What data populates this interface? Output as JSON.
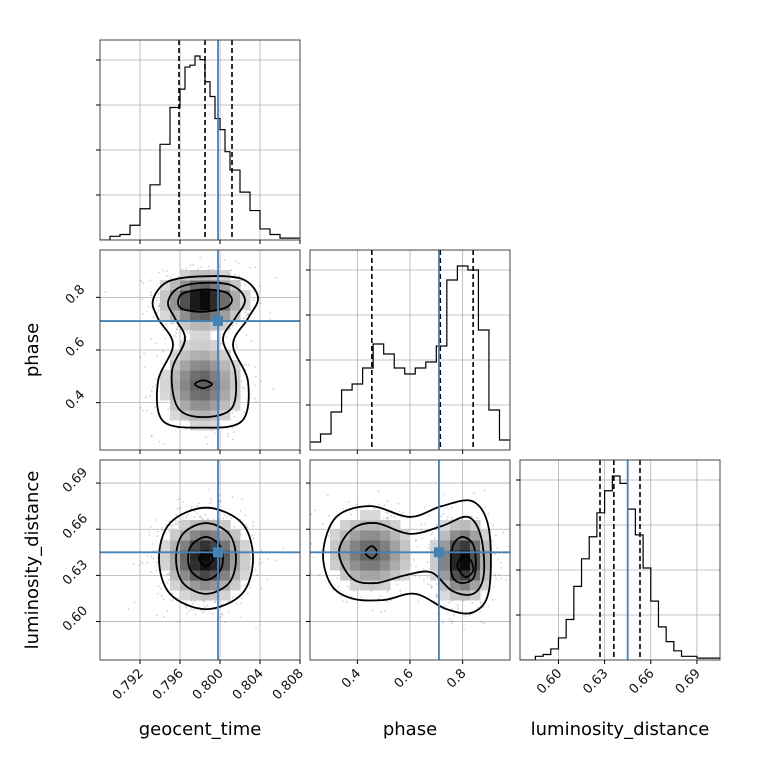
{
  "chart_data": {
    "type": "corner",
    "parameters": [
      "geocent_time",
      "phase",
      "luminosity_distance"
    ],
    "axis_labels": [
      "geocent_time",
      "phase",
      "luminosity_distance"
    ],
    "ranges": [
      [
        0.788,
        0.808
      ],
      [
        0.22,
        0.98
      ],
      [
        0.575,
        0.705
      ]
    ],
    "ticks": [
      [
        "0.792",
        "0.796",
        "0.800",
        "0.804",
        "0.808"
      ],
      [
        "0.4",
        "0.6",
        "0.8"
      ],
      [
        "0.60",
        "0.63",
        "0.66",
        "0.69"
      ]
    ],
    "tick_values": [
      [
        0.792,
        0.796,
        0.8,
        0.804,
        0.808
      ],
      [
        0.4,
        0.6,
        0.8
      ],
      [
        0.6,
        0.63,
        0.66,
        0.69
      ]
    ],
    "truths": [
      0.7998,
      0.71,
      0.645
    ],
    "truth_color": "#4682b4",
    "line_color": "#000000",
    "grid": true,
    "histograms": [
      {
        "param": "geocent_time",
        "bin_edges": [
          0.788,
          0.789,
          0.79,
          0.791,
          0.792,
          0.793,
          0.794,
          0.795,
          0.796,
          0.7965,
          0.797,
          0.7975,
          0.798,
          0.7985,
          0.799,
          0.7995,
          0.8,
          0.8005,
          0.801,
          0.802,
          0.803,
          0.804,
          0.805,
          0.806,
          0.808
        ],
        "counts": [
          0,
          2,
          3,
          8,
          17,
          30,
          52,
          72,
          82,
          94,
          95,
          100,
          98,
          86,
          78,
          66,
          60,
          48,
          38,
          26,
          16,
          6,
          3,
          1
        ],
        "quantiles": [
          0.7959,
          0.7985,
          0.8012
        ]
      },
      {
        "param": "phase",
        "bin_edges": [
          0.22,
          0.26,
          0.3,
          0.34,
          0.38,
          0.42,
          0.46,
          0.5,
          0.54,
          0.58,
          0.62,
          0.66,
          0.7,
          0.74,
          0.78,
          0.82,
          0.86,
          0.9,
          0.94,
          0.98
        ],
        "counts": [
          4,
          8,
          19,
          30,
          33,
          41,
          53,
          48,
          41,
          38,
          41,
          44,
          52,
          85,
          92,
          90,
          60,
          20,
          5
        ],
        "quantiles": [
          0.455,
          0.715,
          0.84
        ]
      },
      {
        "param": "luminosity_distance",
        "bin_edges": [
          0.575,
          0.585,
          0.59,
          0.595,
          0.6,
          0.605,
          0.61,
          0.615,
          0.62,
          0.625,
          0.63,
          0.635,
          0.64,
          0.645,
          0.65,
          0.655,
          0.66,
          0.665,
          0.67,
          0.675,
          0.68,
          0.69,
          0.705
        ],
        "counts": [
          0,
          2,
          3,
          6,
          12,
          22,
          40,
          55,
          67,
          80,
          92,
          100,
          96,
          82,
          68,
          50,
          32,
          18,
          10,
          5,
          2,
          1
        ],
        "quantiles": [
          0.627,
          0.636,
          0.653
        ]
      }
    ],
    "density_panels": [
      {
        "x": "geocent_time",
        "y": "phase",
        "components": [
          {
            "mx": 0.7983,
            "my": 0.79,
            "sx": 0.0021,
            "sy": 0.055,
            "w": 0.62
          },
          {
            "mx": 0.7982,
            "my": 0.47,
            "sx": 0.0021,
            "sy": 0.09,
            "w": 0.38
          }
        ],
        "contours": [
          {
            "name": "contour-inner",
            "points": [
              [
                0.7958,
                0.78
              ],
              [
                0.7963,
                0.815
              ],
              [
                0.7983,
                0.83
              ],
              [
                0.8005,
                0.82
              ],
              [
                0.8012,
                0.79
              ],
              [
                0.8005,
                0.76
              ],
              [
                0.7983,
                0.745
              ],
              [
                0.7963,
                0.755
              ]
            ]
          },
          {
            "name": "contour-middle",
            "points": [
              [
                0.7948,
                0.78
              ],
              [
                0.7958,
                0.835
              ],
              [
                0.7983,
                0.855
              ],
              [
                0.8012,
                0.845
              ],
              [
                0.8025,
                0.79
              ],
              [
                0.8015,
                0.72
              ],
              [
                0.8003,
                0.64
              ],
              [
                0.8015,
                0.52
              ],
              [
                0.8012,
                0.38
              ],
              [
                0.7983,
                0.345
              ],
              [
                0.7958,
                0.38
              ],
              [
                0.7952,
                0.52
              ],
              [
                0.7965,
                0.64
              ],
              [
                0.7955,
                0.72
              ]
            ]
          },
          {
            "name": "contour-outer",
            "points": [
              [
                0.7933,
                0.79
              ],
              [
                0.7948,
                0.86
              ],
              [
                0.7983,
                0.88
              ],
              [
                0.8022,
                0.87
              ],
              [
                0.8038,
                0.8
              ],
              [
                0.8028,
                0.72
              ],
              [
                0.8013,
                0.62
              ],
              [
                0.8028,
                0.48
              ],
              [
                0.8022,
                0.33
              ],
              [
                0.7983,
                0.305
              ],
              [
                0.7943,
                0.33
              ],
              [
                0.7938,
                0.48
              ],
              [
                0.7953,
                0.62
              ],
              [
                0.7938,
                0.72
              ]
            ]
          },
          {
            "name": "contour-mode-low",
            "points": [
              [
                0.7975,
                0.47
              ],
              [
                0.7983,
                0.485
              ],
              [
                0.7992,
                0.47
              ],
              [
                0.7983,
                0.455
              ]
            ]
          }
        ]
      },
      {
        "x": "geocent_time",
        "y": "luminosity_distance",
        "components": [
          {
            "mx": 0.7986,
            "my": 0.641,
            "sx": 0.0021,
            "sy": 0.0135,
            "w": 1.0
          }
        ],
        "contours": [
          {
            "name": "contour-inner",
            "points": [
              [
                0.7968,
                0.641
              ],
              [
                0.7972,
                0.65
              ],
              [
                0.7986,
                0.655
              ],
              [
                0.7999,
                0.65
              ],
              [
                0.8003,
                0.641
              ],
              [
                0.7999,
                0.632
              ],
              [
                0.7986,
                0.627
              ],
              [
                0.7972,
                0.632
              ]
            ]
          },
          {
            "name": "contour-middle",
            "points": [
              [
                0.7956,
                0.641
              ],
              [
                0.7963,
                0.657
              ],
              [
                0.7986,
                0.664
              ],
              [
                0.8009,
                0.657
              ],
              [
                0.8016,
                0.641
              ],
              [
                0.8009,
                0.625
              ],
              [
                0.7986,
                0.618
              ],
              [
                0.7963,
                0.625
              ]
            ]
          },
          {
            "name": "contour-outer",
            "points": [
              [
                0.7939,
                0.641
              ],
              [
                0.795,
                0.664
              ],
              [
                0.7986,
                0.674
              ],
              [
                0.8022,
                0.664
              ],
              [
                0.8033,
                0.641
              ],
              [
                0.8022,
                0.618
              ],
              [
                0.7986,
                0.608
              ],
              [
                0.795,
                0.618
              ]
            ]
          },
          {
            "name": "contour-core",
            "points": [
              [
                0.7979,
                0.641
              ],
              [
                0.7986,
                0.646
              ],
              [
                0.7993,
                0.641
              ],
              [
                0.7986,
                0.636
              ]
            ]
          }
        ]
      },
      {
        "x": "phase",
        "y": "luminosity_distance",
        "components": [
          {
            "mx": 0.8,
            "my": 0.64,
            "sx": 0.055,
            "sy": 0.0135,
            "w": 0.62
          },
          {
            "mx": 0.45,
            "my": 0.645,
            "sx": 0.09,
            "sy": 0.0135,
            "w": 0.38
          }
        ],
        "contours": [
          {
            "name": "contour-inner",
            "points": [
              [
                0.755,
                0.637
              ],
              [
                0.765,
                0.65
              ],
              [
                0.8,
                0.655
              ],
              [
                0.84,
                0.65
              ],
              [
                0.85,
                0.637
              ],
              [
                0.84,
                0.628
              ],
              [
                0.8,
                0.625
              ],
              [
                0.765,
                0.628
              ]
            ]
          },
          {
            "name": "contour-middle",
            "points": [
              [
                0.33,
                0.645
              ],
              [
                0.38,
                0.66
              ],
              [
                0.47,
                0.664
              ],
              [
                0.6,
                0.657
              ],
              [
                0.72,
                0.662
              ],
              [
                0.82,
                0.668
              ],
              [
                0.87,
                0.655
              ],
              [
                0.88,
                0.63
              ],
              [
                0.84,
                0.618
              ],
              [
                0.76,
                0.62
              ],
              [
                0.68,
                0.632
              ],
              [
                0.58,
                0.63
              ],
              [
                0.47,
                0.625
              ],
              [
                0.38,
                0.628
              ]
            ]
          },
          {
            "name": "contour-outer",
            "points": [
              [
                0.27,
                0.645
              ],
              [
                0.32,
                0.668
              ],
              [
                0.45,
                0.675
              ],
              [
                0.6,
                0.668
              ],
              [
                0.72,
                0.675
              ],
              [
                0.84,
                0.678
              ],
              [
                0.9,
                0.66
              ],
              [
                0.9,
                0.62
              ],
              [
                0.84,
                0.606
              ],
              [
                0.74,
                0.608
              ],
              [
                0.62,
                0.618
              ],
              [
                0.5,
                0.614
              ],
              [
                0.38,
                0.615
              ],
              [
                0.3,
                0.624
              ]
            ]
          },
          {
            "name": "contour-mode-left",
            "points": [
              [
                0.43,
                0.645
              ],
              [
                0.455,
                0.649
              ],
              [
                0.475,
                0.645
              ],
              [
                0.455,
                0.641
              ]
            ]
          },
          {
            "name": "contour-core",
            "points": [
              [
                0.78,
                0.636
              ],
              [
                0.8,
                0.642
              ],
              [
                0.83,
                0.64
              ],
              [
                0.84,
                0.633
              ],
              [
                0.81,
                0.629
              ]
            ]
          }
        ]
      }
    ]
  }
}
